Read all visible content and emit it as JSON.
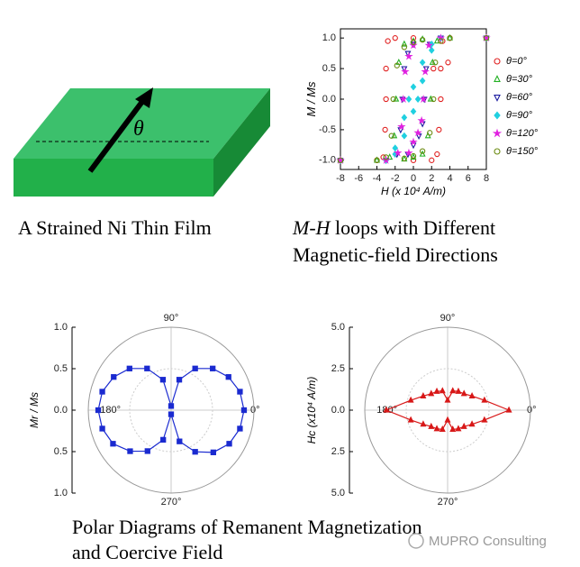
{
  "diagram": {
    "angle_label": "θ"
  },
  "captions": {
    "film": "A Strained Ni Thin Film",
    "mh_italic": "M-H",
    "mh_line1": " loops with Different",
    "mh_line2": "Magnetic-field Directions",
    "polar_line1": "Polar Diagrams of Remanent Magnetization",
    "polar_line2": "and Coercive Field"
  },
  "watermark": "MUPRO Consulting",
  "chart_data": [
    {
      "type": "scatter",
      "x_label": "H (x 10⁴ A/m)",
      "y_label": "M / Ms",
      "xlim": [
        -8,
        8
      ],
      "ylim": [
        -1.15,
        1.15
      ],
      "xticks": [
        -8,
        -6,
        -4,
        -2,
        0,
        2,
        4,
        6,
        8
      ],
      "yticks": [
        {
          "value": -1,
          "label": "-1.0"
        },
        {
          "value": -0.5,
          "label": "-0.5"
        },
        {
          "value": 0,
          "label": "0.0"
        },
        {
          "value": 0.5,
          "label": "0.5"
        },
        {
          "value": 1,
          "label": "1.0"
        }
      ],
      "series": [
        {
          "name": "θ=0°",
          "color": "#e02020",
          "marker": "circle",
          "x": [
            8,
            4,
            0,
            -2,
            -2.8,
            -3,
            -3,
            -3.1,
            -3.3,
            -4,
            -8,
            -4,
            0,
            2,
            2.6,
            2.8,
            3,
            3,
            3.2,
            4,
            2.2,
            3.8
          ],
          "y": [
            1,
            1,
            1,
            1,
            0.95,
            0.5,
            0,
            -0.5,
            -0.95,
            -1,
            -1,
            -1,
            -1,
            -1,
            -0.9,
            -0.5,
            0,
            0.5,
            0.95,
            1,
            0.5,
            0.6
          ]
        },
        {
          "name": "θ=30°",
          "color": "#22b022",
          "marker": "triangle-up",
          "x": [
            8,
            4,
            1,
            0,
            -1,
            -1.6,
            -1.9,
            -2.1,
            -2.6,
            -4,
            -8,
            -1,
            0,
            1,
            1.6,
            1.9,
            2.1,
            2.6
          ],
          "y": [
            1,
            1,
            0.98,
            0.95,
            0.9,
            0.6,
            0,
            -0.6,
            -0.95,
            -1,
            -1,
            -0.98,
            -0.95,
            -0.9,
            -0.6,
            0,
            0.6,
            0.95
          ]
        },
        {
          "name": "θ=60°",
          "color": "#1a1aa0",
          "marker": "triangle-down",
          "x": [
            8,
            3,
            0,
            -0.6,
            -1,
            -1.2,
            -1.4,
            -1.8,
            -3,
            -8,
            -0.6,
            0,
            0.6,
            1,
            1.2,
            1.4,
            1.8
          ],
          "y": [
            1,
            1,
            0.9,
            0.75,
            0.5,
            0,
            -0.5,
            -0.9,
            -1,
            -1,
            -0.9,
            -0.75,
            -0.6,
            -0.4,
            0,
            0.5,
            0.9
          ]
        },
        {
          "name": "θ=90°",
          "color": "#20d0e0",
          "marker": "diamond",
          "x": [
            8,
            3,
            2,
            1,
            0,
            -0.5,
            -1,
            -2,
            -3,
            -8,
            -2,
            -1,
            0,
            0.5,
            1,
            2
          ],
          "y": [
            1,
            1,
            0.9,
            0.6,
            0.2,
            0,
            -0.3,
            -0.8,
            -1,
            -1,
            -0.9,
            -0.6,
            -0.2,
            0,
            0.3,
            0.8
          ]
        },
        {
          "name": "θ=120°",
          "color": "#e020e0",
          "marker": "star",
          "x": [
            8,
            3,
            0,
            -0.5,
            -0.9,
            -1.1,
            -1.3,
            -1.7,
            -3,
            -8,
            -0.5,
            0,
            0.5,
            0.9,
            1.1,
            1.3,
            1.7
          ],
          "y": [
            1,
            1,
            0.88,
            0.7,
            0.45,
            0,
            -0.45,
            -0.88,
            -1,
            -1,
            -0.88,
            -0.7,
            -0.55,
            -0.35,
            0,
            0.45,
            0.88
          ]
        },
        {
          "name": "θ=150°",
          "color": "#6a8a10",
          "marker": "circle",
          "x": [
            8,
            4,
            1,
            0,
            -1,
            -1.8,
            -2.2,
            -2.4,
            -3,
            -4,
            -8,
            -1,
            0,
            1,
            1.8,
            2.2,
            2.4,
            3
          ],
          "y": [
            1,
            1,
            0.97,
            0.93,
            0.85,
            0.55,
            0,
            -0.6,
            -0.95,
            -1,
            -1,
            -0.97,
            -0.93,
            -0.85,
            -0.55,
            0,
            0.6,
            0.95
          ]
        }
      ]
    },
    {
      "type": "polar",
      "y_label": "Mr / Ms",
      "rlim": [
        0,
        1
      ],
      "rticks": [
        {
          "value": 0,
          "label": "0.0"
        },
        {
          "value": 0.5,
          "label": "0.5"
        },
        {
          "value": 1,
          "label": "1.0"
        }
      ],
      "angle_ticks": [
        {
          "value": 0,
          "label": "0°"
        },
        {
          "value": 90,
          "label": "90°"
        },
        {
          "value": 180,
          "label": "180°"
        },
        {
          "value": 270,
          "label": "270°"
        }
      ],
      "series": [
        {
          "color": "#1a2ad0",
          "marker": "square",
          "theta": [
            0,
            15,
            30,
            45,
            60,
            75,
            90,
            105,
            120,
            135,
            150,
            165,
            180,
            195,
            210,
            225,
            240,
            255,
            270,
            285,
            300,
            315,
            330,
            345
          ],
          "r": [
            0.88,
            0.86,
            0.8,
            0.71,
            0.58,
            0.38,
            0.05,
            0.38,
            0.58,
            0.71,
            0.8,
            0.86,
            0.88,
            0.86,
            0.81,
            0.7,
            0.57,
            0.37,
            0.05,
            0.39,
            0.58,
            0.72,
            0.81,
            0.86
          ]
        }
      ]
    },
    {
      "type": "polar",
      "y_label": "Hc (x10⁴ A/m)",
      "rlim": [
        0,
        5
      ],
      "rticks": [
        {
          "value": 0,
          "label": "0.0"
        },
        {
          "value": 2.5,
          "label": "2.5"
        },
        {
          "value": 5,
          "label": "5.0"
        }
      ],
      "angle_ticks": [
        {
          "value": 0,
          "label": "0°"
        },
        {
          "value": 90,
          "label": "90°"
        },
        {
          "value": 180,
          "label": "180°"
        },
        {
          "value": 270,
          "label": "270°"
        }
      ],
      "series": [
        {
          "color": "#d81818",
          "marker": "triangle-up",
          "theta": [
            0,
            15,
            30,
            45,
            60,
            75,
            90,
            105,
            120,
            135,
            150,
            165,
            180,
            195,
            210,
            225,
            240,
            255,
            270,
            285,
            300,
            315,
            330,
            345
          ],
          "r": [
            3.7,
            2.3,
            1.7,
            1.4,
            1.3,
            1.2,
            0.6,
            1.2,
            1.3,
            1.4,
            1.7,
            2.3,
            3.7,
            2.3,
            1.7,
            1.4,
            1.3,
            1.2,
            0.6,
            1.2,
            1.3,
            1.4,
            1.7,
            2.3
          ]
        }
      ]
    }
  ]
}
